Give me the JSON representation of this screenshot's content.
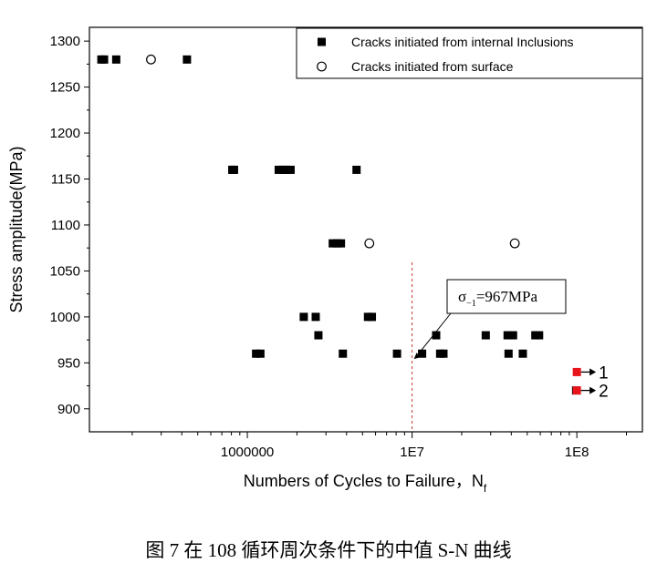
{
  "chart_data": {
    "type": "scatter",
    "xscale": "log",
    "xlim": [
      110000,
      250000000
    ],
    "ylim": [
      875,
      1315
    ],
    "xlabel": "Numbers of Cycles to Failure，N",
    "xlabel_sub": "f",
    "ylabel": "Stress amplitude(MPa)",
    "x_ticks": [
      {
        "value": 1000000,
        "label": "1000000"
      },
      {
        "value": 10000000,
        "label": "1E7"
      },
      {
        "value": 100000000,
        "label": "1E8"
      }
    ],
    "y_ticks": [
      900,
      950,
      1000,
      1050,
      1100,
      1150,
      1200,
      1250,
      1300
    ],
    "grid": false,
    "legend_position": "top-right",
    "series": [
      {
        "name": "Cracks initiated from internal Inclusions",
        "marker": "filled-square",
        "color": "#000000",
        "points": [
          {
            "x": 130000,
            "y": 1280
          },
          {
            "x": 135000,
            "y": 1280
          },
          {
            "x": 160000,
            "y": 1280
          },
          {
            "x": 430000,
            "y": 1280
          },
          {
            "x": 810000,
            "y": 1160
          },
          {
            "x": 830000,
            "y": 1160
          },
          {
            "x": 1550000,
            "y": 1160
          },
          {
            "x": 1640000,
            "y": 1160
          },
          {
            "x": 1730000,
            "y": 1160
          },
          {
            "x": 1830000,
            "y": 1160
          },
          {
            "x": 4600000,
            "y": 1160
          },
          {
            "x": 3300000,
            "y": 1080
          },
          {
            "x": 3500000,
            "y": 1080
          },
          {
            "x": 3700000,
            "y": 1080
          },
          {
            "x": 2200000,
            "y": 1000
          },
          {
            "x": 2600000,
            "y": 1000
          },
          {
            "x": 5400000,
            "y": 1000
          },
          {
            "x": 5700000,
            "y": 1000
          },
          {
            "x": 2700000,
            "y": 980
          },
          {
            "x": 14000000,
            "y": 980
          },
          {
            "x": 28000000,
            "y": 980
          },
          {
            "x": 38000000,
            "y": 980
          },
          {
            "x": 41000000,
            "y": 980
          },
          {
            "x": 56000000,
            "y": 980
          },
          {
            "x": 59000000,
            "y": 980
          },
          {
            "x": 1130000,
            "y": 960
          },
          {
            "x": 1200000,
            "y": 960
          },
          {
            "x": 3800000,
            "y": 960
          },
          {
            "x": 8100000,
            "y": 960
          },
          {
            "x": 11500000,
            "y": 960
          },
          {
            "x": 14800000,
            "y": 960
          },
          {
            "x": 15500000,
            "y": 960
          },
          {
            "x": 38500000,
            "y": 960
          },
          {
            "x": 47000000,
            "y": 960
          },
          {
            "x": 99000000,
            "y": 920
          }
        ]
      },
      {
        "name": "Cracks initiated from surface",
        "marker": "open-circle",
        "color": "#000000",
        "points": [
          {
            "x": 260000,
            "y": 1280
          },
          {
            "x": 5500000,
            "y": 1080
          },
          {
            "x": 42000000,
            "y": 1080
          }
        ]
      }
    ],
    "runouts": [
      {
        "x": 100000000,
        "y": 940,
        "label": "1",
        "color": "#e8141c"
      },
      {
        "x": 100000000,
        "y": 920,
        "label": "2",
        "color": "#e8141c"
      }
    ],
    "annotation": {
      "sigma": "σ",
      "sub": "−1",
      "text": "=967MPa",
      "x": 10000000,
      "y": 967
    },
    "caption": "图 7 在 108 循环周次条件下的中值 S-N 曲线"
  }
}
